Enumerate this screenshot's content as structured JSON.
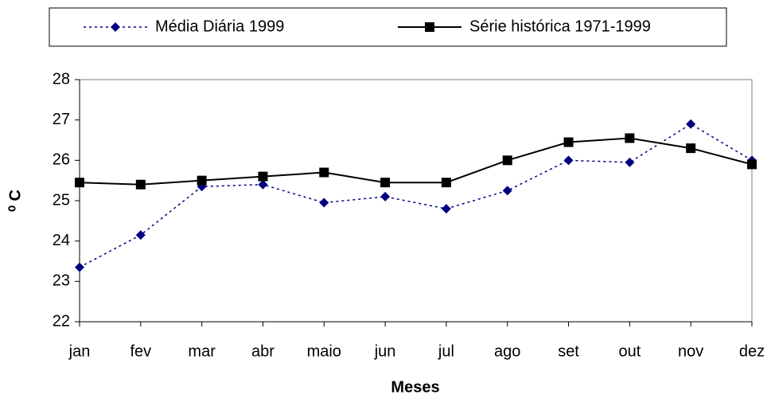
{
  "chart_data": {
    "type": "line",
    "categories": [
      "jan",
      "fev",
      "mar",
      "abr",
      "maio",
      "jun",
      "jul",
      "ago",
      "set",
      "out",
      "nov",
      "dez"
    ],
    "series": [
      {
        "name": "Média Diária 1999",
        "color": "#000080",
        "values": [
          23.35,
          24.15,
          25.35,
          25.4,
          24.95,
          25.1,
          24.8,
          25.25,
          26.0,
          25.95,
          26.9,
          26.0
        ]
      },
      {
        "name": "Série histórica 1971-1999",
        "color": "#000000",
        "values": [
          25.45,
          25.4,
          25.5,
          25.6,
          25.7,
          25.45,
          25.45,
          26.0,
          26.45,
          26.55,
          26.3,
          25.9
        ]
      }
    ],
    "xlabel": "Meses",
    "ylabel": "⁰ C",
    "ylim": [
      22,
      28
    ],
    "yticks": [
      22,
      23,
      24,
      25,
      26,
      27,
      28
    ]
  }
}
